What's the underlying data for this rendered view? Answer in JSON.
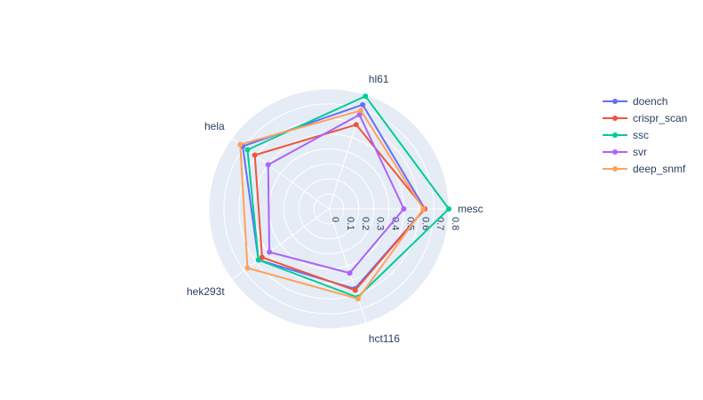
{
  "chart_data": {
    "type": "radar",
    "axes": [
      "mesc",
      "hl61",
      "hela",
      "hek293t",
      "hct116"
    ],
    "radial_range": [
      0,
      0.8
    ],
    "radial_ticks": [
      "0",
      "0.1",
      "0.2",
      "0.3",
      "0.4",
      "0.5",
      "0.6",
      "0.7",
      "0.8"
    ],
    "grid": true,
    "legend_position": "top-right",
    "series": [
      {
        "name": "doench",
        "color": "#636efa",
        "values": [
          0.64,
          0.73,
          0.71,
          0.58,
          0.56
        ]
      },
      {
        "name": "crispr_scan",
        "color": "#ef553b",
        "values": [
          0.64,
          0.59,
          0.61,
          0.55,
          0.57
        ]
      },
      {
        "name": "ssc",
        "color": "#00cc96",
        "values": [
          0.8,
          0.79,
          0.67,
          0.58,
          0.62
        ]
      },
      {
        "name": "svr",
        "color": "#ab63fa",
        "values": [
          0.5,
          0.66,
          0.5,
          0.49,
          0.45
        ]
      },
      {
        "name": "deep_snmf",
        "color": "#ffa15a",
        "values": [
          0.63,
          0.69,
          0.73,
          0.67,
          0.63
        ]
      }
    ]
  }
}
